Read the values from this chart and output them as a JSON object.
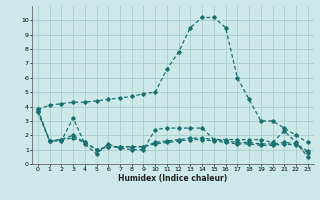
{
  "xlabel": "Humidex (Indice chaleur)",
  "xlim": [
    -0.5,
    23.5
  ],
  "ylim": [
    0,
    11
  ],
  "yticks": [
    0,
    1,
    2,
    3,
    4,
    5,
    6,
    7,
    8,
    9,
    10
  ],
  "xticks": [
    0,
    1,
    2,
    3,
    4,
    5,
    6,
    7,
    8,
    9,
    10,
    11,
    12,
    13,
    14,
    15,
    16,
    17,
    18,
    19,
    20,
    21,
    22,
    23
  ],
  "bg_color": "#cce8e8",
  "grid_color": "#aacccc",
  "line_color": "#1a7070",
  "line1_y": [
    3.8,
    4.1,
    4.2,
    4.3,
    4.3,
    4.4,
    4.5,
    4.6,
    4.7,
    4.9,
    5.0,
    6.6,
    7.8,
    9.5,
    10.2,
    10.2,
    9.5,
    6.0,
    4.5,
    3.0,
    3.0,
    2.5,
    2.0,
    1.5
  ],
  "line2_y": [
    3.8,
    1.6,
    1.6,
    3.2,
    1.4,
    0.7,
    1.4,
    1.1,
    1.0,
    1.0,
    2.4,
    2.5,
    2.5,
    2.5,
    2.5,
    1.7,
    1.7,
    1.7,
    1.7,
    1.7,
    1.5,
    2.3,
    1.5,
    0.5
  ],
  "line3_y": [
    3.6,
    1.6,
    1.7,
    2.0,
    1.5,
    1.0,
    1.2,
    1.2,
    1.2,
    1.2,
    1.5,
    1.6,
    1.7,
    1.8,
    1.8,
    1.7,
    1.6,
    1.5,
    1.5,
    1.4,
    1.4,
    1.5,
    1.4,
    0.9
  ],
  "line4_y": [
    3.7,
    1.6,
    1.7,
    1.8,
    1.5,
    1.0,
    1.2,
    1.2,
    1.2,
    1.2,
    1.4,
    1.5,
    1.6,
    1.7,
    1.7,
    1.6,
    1.5,
    1.4,
    1.4,
    1.3,
    1.3,
    1.4,
    1.3,
    0.8
  ]
}
